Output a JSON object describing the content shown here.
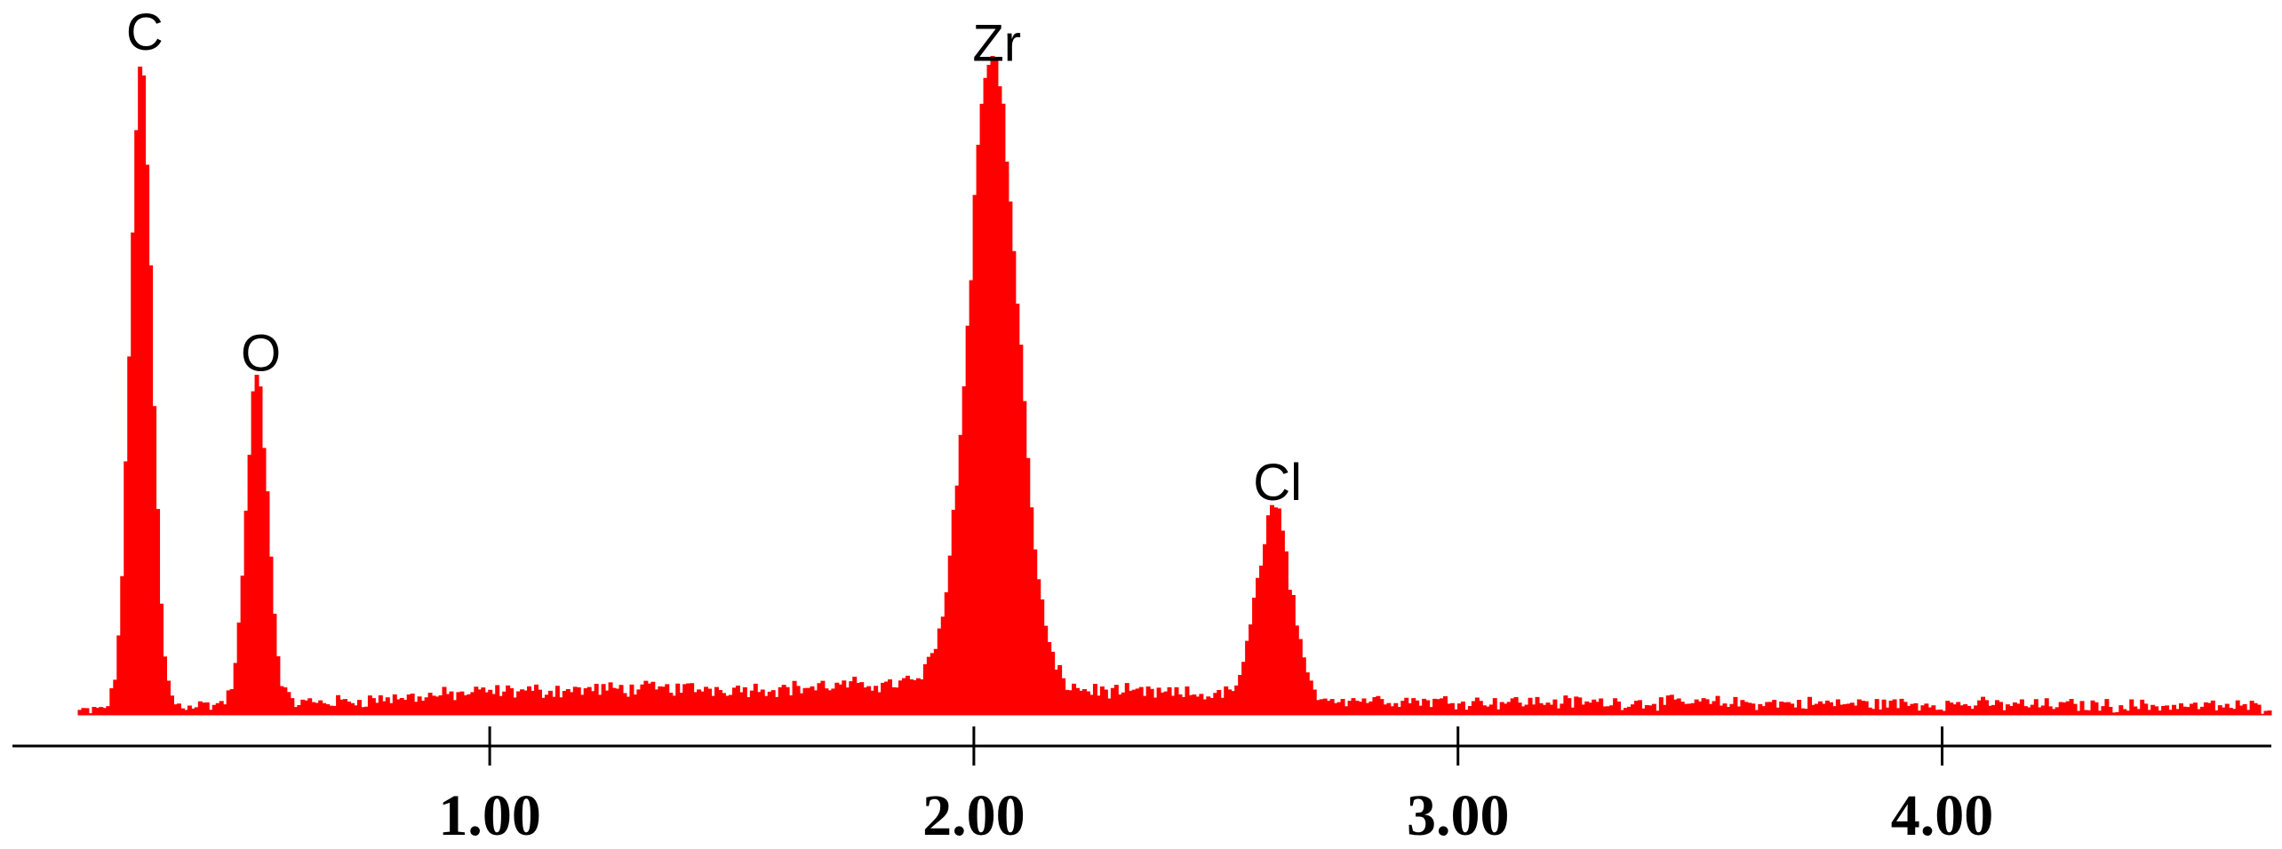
{
  "chart_data": {
    "type": "area",
    "title": "",
    "xlabel": "",
    "ylabel": "",
    "xlim": [
      0.15,
      4.68
    ],
    "ylim": [
      0,
      1.0
    ],
    "grid": false,
    "legend": "none",
    "series_color": "#ff0000",
    "axis_color": "#000000",
    "x_ticks": [
      {
        "value": 1.0,
        "label": "1.00"
      },
      {
        "value": 2.0,
        "label": "2.00"
      },
      {
        "value": 3.0,
        "label": "3.00"
      },
      {
        "value": 4.0,
        "label": "4.00"
      }
    ],
    "peaks": [
      {
        "label": "C",
        "energy": 0.28,
        "height": 1.0,
        "width": 0.022
      },
      {
        "label": "O",
        "energy": 0.52,
        "height": 0.5,
        "width": 0.022
      },
      {
        "label": "Zr",
        "energy": 2.04,
        "height": 0.98,
        "width": 0.05
      },
      {
        "label": "Cl",
        "energy": 2.62,
        "height": 0.3,
        "width": 0.033
      }
    ],
    "background": {
      "points": [
        [
          0.15,
          0.005
        ],
        [
          0.4,
          0.015
        ],
        [
          0.7,
          0.02
        ],
        [
          1.0,
          0.035
        ],
        [
          1.3,
          0.04
        ],
        [
          1.6,
          0.04
        ],
        [
          1.9,
          0.05
        ],
        [
          2.3,
          0.035
        ],
        [
          2.7,
          0.025
        ],
        [
          3.0,
          0.02
        ],
        [
          3.5,
          0.018
        ],
        [
          4.0,
          0.016
        ],
        [
          4.68,
          0.012
        ]
      ]
    }
  }
}
